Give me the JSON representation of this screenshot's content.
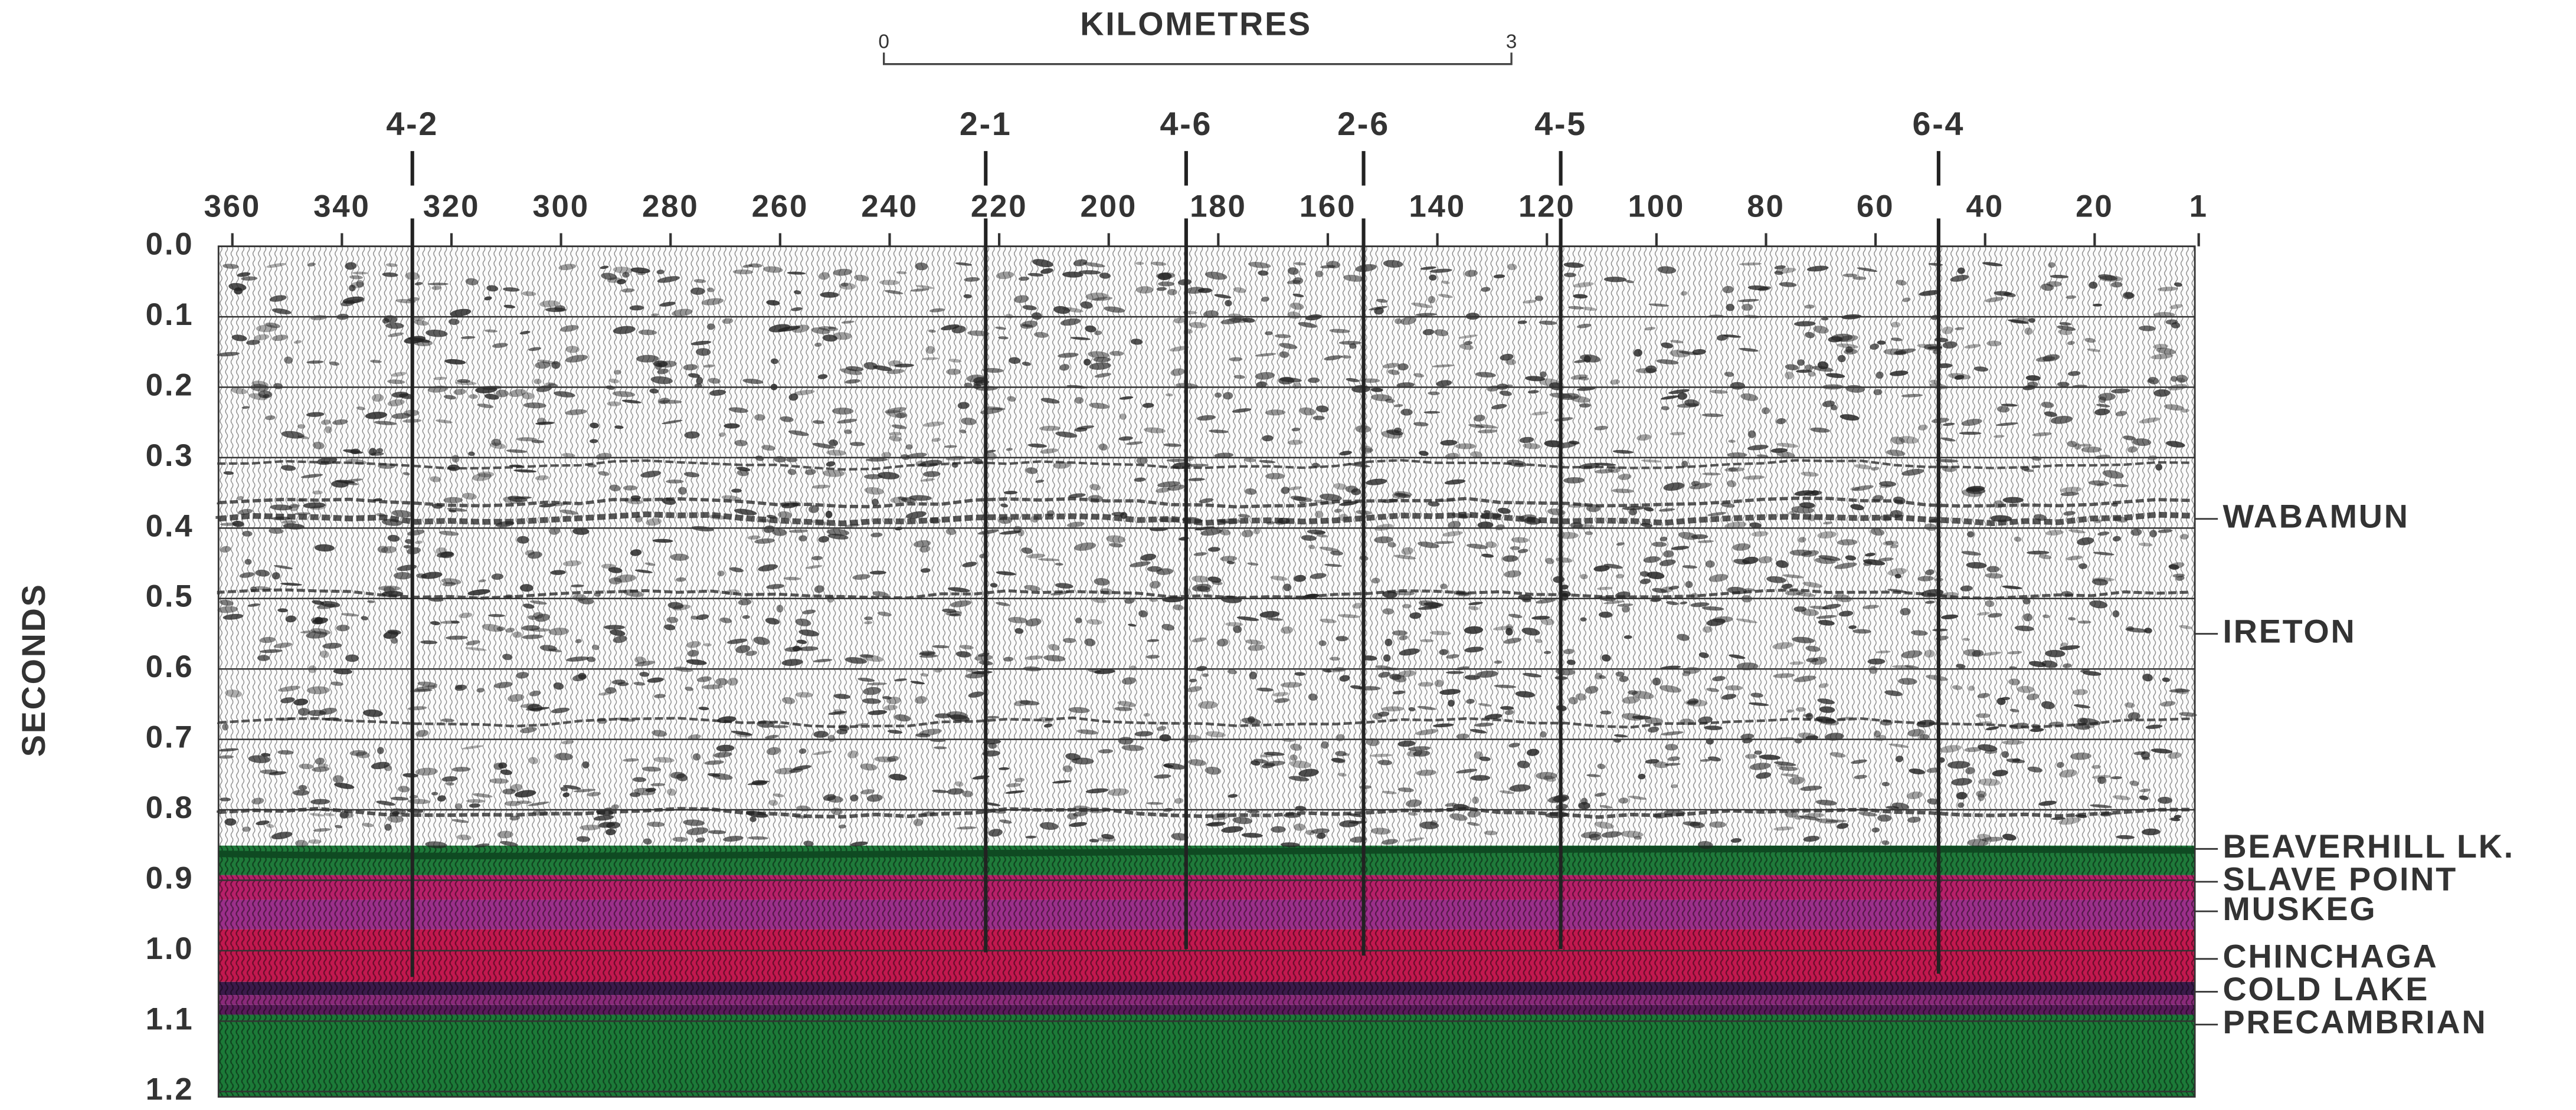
{
  "scale_bar": {
    "title": "KILOMETRES",
    "start": "0",
    "end": "3"
  },
  "wells": [
    "4-2",
    "2-1",
    "4-6",
    "2-6",
    "4-5",
    "6-4"
  ],
  "trace_axis": {
    "ticks": [
      360,
      340,
      320,
      300,
      280,
      260,
      240,
      220,
      200,
      180,
      160,
      140,
      120,
      100,
      80,
      60,
      40,
      20,
      1
    ]
  },
  "time_axis": {
    "title": "SECONDS",
    "ticks": [
      {
        "value": 0,
        "label": "0.0"
      },
      {
        "value": 0.1,
        "label": "0.1"
      },
      {
        "value": 0.2,
        "label": "0.2"
      },
      {
        "value": 0.3,
        "label": "0.3"
      },
      {
        "value": 0.4,
        "label": "0.4"
      },
      {
        "value": 0.5,
        "label": "0.5"
      },
      {
        "value": 0.6,
        "label": "0.6"
      },
      {
        "value": 0.7,
        "label": "0.7"
      },
      {
        "value": 0.8,
        "label": "0.8"
      },
      {
        "value": 0.9,
        "label": "0.9"
      },
      {
        "value": 1.0,
        "label": "1.0"
      },
      {
        "value": 1.1,
        "label": "1.1"
      },
      {
        "value": 1.2,
        "label": "1.2"
      }
    ]
  },
  "horizons": [
    "WABAMUN",
    "IRETON",
    "BEAVERHILL LK.",
    "SLAVE POINT",
    "MUSKEG",
    "CHINCHAGA",
    "COLD LAKE",
    "PRECAMBRIAN"
  ]
}
